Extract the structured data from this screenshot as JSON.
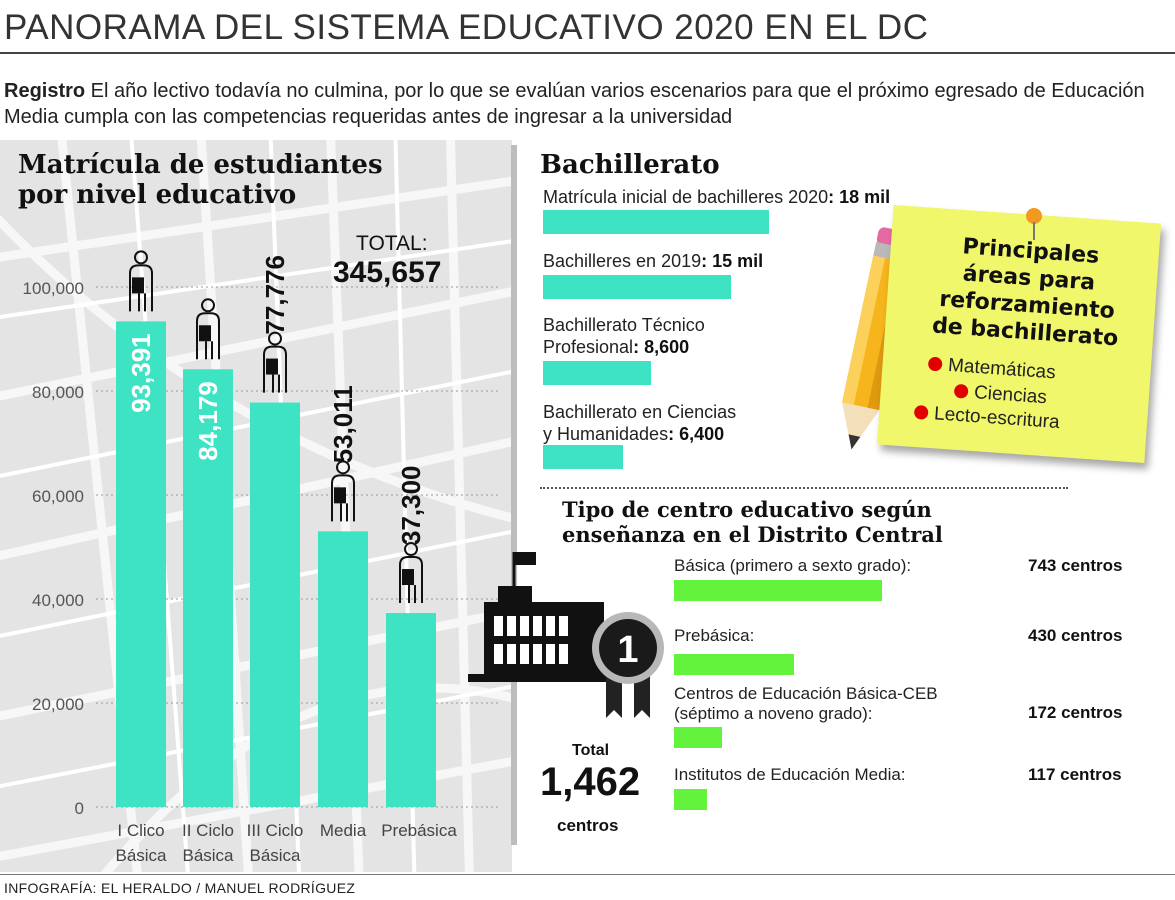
{
  "header": {
    "title": "PANORAMA DEL SISTEMA EDUCATIVO 2020 EN EL DC",
    "intro_lead": "Registro",
    "intro_text": " El año lectivo todavía no culmina, por lo que se evalúan varios escenarios para que el próximo egresado de Educación Media cumpla con las competencias requeridas antes de ingresar a la universidad"
  },
  "chart_data": [
    {
      "type": "bar",
      "title": "Matrícula  de estudiantes por nivel educativo",
      "categories": [
        [
          "I Clico",
          "Básica"
        ],
        [
          "II Ciclo",
          "Básica"
        ],
        [
          "III Ciclo",
          "Básica"
        ],
        [
          "Media"
        ],
        [
          "Prebásica"
        ]
      ],
      "values": [
        93391,
        84179,
        77776,
        53011,
        37300
      ],
      "value_labels": [
        "93,391",
        "84,179",
        "77,776",
        "53,011",
        "37,300"
      ],
      "yticks": [
        "0",
        "20,000",
        "40,000",
        "60,000",
        "80,000",
        "100,000"
      ],
      "ylim": [
        0,
        100000
      ],
      "total_label": "TOTAL:",
      "total_value": "345,657",
      "bar_color": "#3ee3c4",
      "grid": true
    },
    {
      "type": "bar",
      "orientation": "horizontal",
      "title": "Bachillerato",
      "items": [
        {
          "label": "Matrícula inicial de bachilleres 2020",
          "value_text": "18 mil",
          "value": 18000
        },
        {
          "label": "Bachilleres en 2019",
          "value_text": "15 mil",
          "value": 15000
        },
        {
          "label_lines": [
            "Bachillerato Técnico",
            "Profesional"
          ],
          "value_text": "8,600",
          "value": 8600
        },
        {
          "label_lines": [
            "Bachillerato en Ciencias",
            "y Humanidades"
          ],
          "value_text": "6,400",
          "value": 6400
        }
      ],
      "bar_color": "#3ee3c4"
    },
    {
      "type": "bar",
      "orientation": "horizontal",
      "title": "Tipo de centro educativo según enseñanza en el Distrito Central",
      "items": [
        {
          "label_lines": [
            "Básica (primero a sexto grado):"
          ],
          "count_text": "743 centros",
          "value": 743
        },
        {
          "label_lines": [
            "Prebásica:"
          ],
          "count_text": "430 centros",
          "value": 430
        },
        {
          "label_lines": [
            "Centros de Educación Básica-CEB",
            "(séptimo a noveno grado):"
          ],
          "count_text": "172 centros",
          "value": 172
        },
        {
          "label_lines": [
            "Institutos de Educación Media:"
          ],
          "count_text": "117  centros",
          "value": 117
        }
      ],
      "total_label": "Total",
      "total_value": "1,462",
      "total_unit": "centros",
      "bar_color": "#63f33d"
    }
  ],
  "note": {
    "title": "Principales áreas para reforzamiento de bachillerato",
    "items": [
      "Matemáticas",
      "Ciencias",
      "Lecto-escritura"
    ]
  },
  "badge": {
    "number": "1"
  },
  "credit": "INFOGRAFÍA: EL HERALDO / MANUEL RODRÍGUEZ"
}
